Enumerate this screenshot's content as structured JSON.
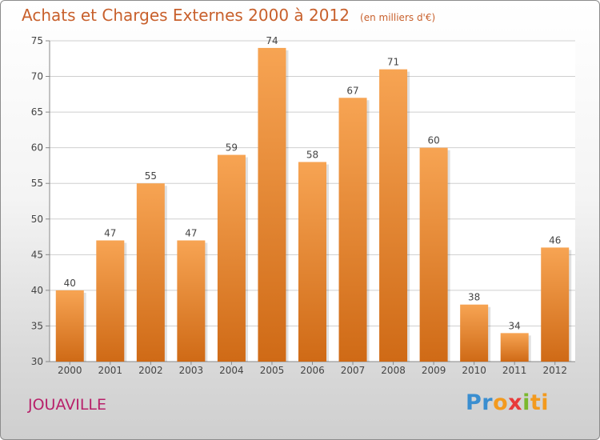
{
  "header": {
    "title": "Achats et Charges Externes 2000 à 2012",
    "unit": "(en milliers d'€)"
  },
  "footer": {
    "place": "JOUAVILLE",
    "logo": {
      "p1": "Pr",
      "p2": "o",
      "p3": "x",
      "p4": "i",
      "p5": "ti"
    }
  },
  "colors": {
    "bar_top": "#f7a453",
    "bar_bottom": "#cf6a16",
    "title": "#c8602c",
    "place": "#b8206a",
    "grid": "#cfcfcf"
  },
  "chart_data": {
    "type": "bar",
    "categories": [
      "2000",
      "2001",
      "2002",
      "2003",
      "2004",
      "2005",
      "2006",
      "2007",
      "2008",
      "2009",
      "2010",
      "2011",
      "2012"
    ],
    "values": [
      40,
      47,
      55,
      47,
      59,
      74,
      58,
      67,
      71,
      60,
      38,
      34,
      46
    ],
    "ylim": [
      30,
      75
    ],
    "yticks": [
      30,
      35,
      40,
      45,
      50,
      55,
      60,
      65,
      70,
      75
    ],
    "grid": true,
    "legend": "none"
  }
}
